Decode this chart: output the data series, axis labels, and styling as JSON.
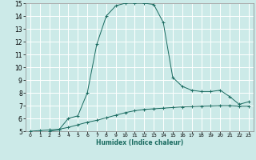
{
  "xlabel": "Humidex (Indice chaleur)",
  "ylabel": "",
  "bg_color": "#cceae8",
  "line_color": "#1a6b60",
  "grid_color": "#ffffff",
  "xlim": [
    -0.5,
    23.5
  ],
  "ylim": [
    5,
    15
  ],
  "xticks": [
    0,
    1,
    2,
    3,
    4,
    5,
    6,
    7,
    8,
    9,
    10,
    11,
    12,
    13,
    14,
    15,
    16,
    17,
    18,
    19,
    20,
    21,
    22,
    23
  ],
  "yticks": [
    5,
    6,
    7,
    8,
    9,
    10,
    11,
    12,
    13,
    14,
    15
  ],
  "curve1_x": [
    0,
    1,
    2,
    3,
    4,
    5,
    6,
    7,
    8,
    9,
    10,
    11,
    12,
    13,
    14,
    15,
    16,
    17,
    18,
    19,
    20,
    21,
    22,
    23
  ],
  "curve1_y": [
    5.0,
    5.05,
    5.1,
    5.15,
    5.3,
    5.5,
    5.7,
    5.85,
    6.05,
    6.25,
    6.45,
    6.6,
    6.7,
    6.75,
    6.8,
    6.85,
    6.9,
    6.92,
    6.95,
    6.97,
    7.0,
    7.0,
    6.95,
    6.95
  ],
  "curve2_x": [
    2,
    3,
    4,
    5,
    6,
    7,
    8,
    9,
    10,
    11,
    12,
    13,
    14,
    15,
    16,
    17,
    18,
    19,
    20,
    21,
    22,
    23
  ],
  "curve2_y": [
    5.0,
    5.1,
    6.0,
    6.2,
    8.0,
    11.8,
    14.0,
    14.8,
    15.0,
    15.0,
    15.0,
    14.9,
    13.5,
    9.2,
    8.5,
    8.2,
    8.1,
    8.1,
    8.2,
    7.7,
    7.1,
    7.3
  ]
}
